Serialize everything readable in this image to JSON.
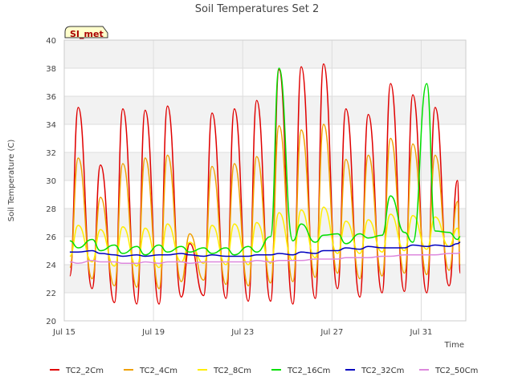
{
  "chart_data": {
    "type": "line",
    "title": "Soil Temperatures Set 2",
    "xlabel": "Time",
    "ylabel": "Soil Temperature (C)",
    "ylim": [
      20,
      40
    ],
    "yticks": [
      20,
      22,
      24,
      26,
      28,
      30,
      32,
      34,
      36,
      38,
      40
    ],
    "xlim": [
      "2023-07-15",
      "2023-08-02"
    ],
    "xticks": [
      {
        "date": "2023-07-15",
        "label": "Jul 15"
      },
      {
        "date": "2023-07-19",
        "label": "Jul 19"
      },
      {
        "date": "2023-07-23",
        "label": "Jul 23"
      },
      {
        "date": "2023-07-27",
        "label": "Jul 27"
      },
      {
        "date": "2023-07-31",
        "label": "Jul 31"
      }
    ],
    "grid": true,
    "legend_position": "bottom",
    "site_label": "SI_met",
    "x": [
      "2023-07-15 06:00",
      "2023-07-15 15:00",
      "2023-07-16 06:00",
      "2023-07-16 15:00",
      "2023-07-17 06:00",
      "2023-07-17 15:00",
      "2023-07-18 06:00",
      "2023-07-18 15:00",
      "2023-07-19 06:00",
      "2023-07-19 15:00",
      "2023-07-20 06:00",
      "2023-07-20 15:00",
      "2023-07-21 06:00",
      "2023-07-21 15:00",
      "2023-07-22 06:00",
      "2023-07-22 15:00",
      "2023-07-23 06:00",
      "2023-07-23 15:00",
      "2023-07-24 06:00",
      "2023-07-24 15:00",
      "2023-07-25 06:00",
      "2023-07-25 15:00",
      "2023-07-26 06:00",
      "2023-07-26 15:00",
      "2023-07-27 06:00",
      "2023-07-27 15:00",
      "2023-07-28 06:00",
      "2023-07-28 15:00",
      "2023-07-29 06:00",
      "2023-07-29 15:00",
      "2023-07-30 06:00",
      "2023-07-30 15:00",
      "2023-07-31 06:00",
      "2023-07-31 15:00",
      "2023-08-01 06:00",
      "2023-08-01 15:00",
      "2023-08-01 18:00"
    ],
    "series": [
      {
        "name": "TC2_2Cm",
        "color": "#e00000",
        "values": [
          23.2,
          35.2,
          22.3,
          31.1,
          21.3,
          35.1,
          21.2,
          35.0,
          21.2,
          35.3,
          21.7,
          25.5,
          21.8,
          34.8,
          21.6,
          35.1,
          21.4,
          35.7,
          21.4,
          37.9,
          21.2,
          38.1,
          21.6,
          38.3,
          22.3,
          35.1,
          21.7,
          34.7,
          22.0,
          36.9,
          22.1,
          36.1,
          22.0,
          35.2,
          22.5,
          30.0,
          23.4
        ]
      },
      {
        "name": "TC2_4Cm",
        "color": "#f0a000",
        "values": [
          23.8,
          31.6,
          23.0,
          28.8,
          22.5,
          31.2,
          22.4,
          31.6,
          22.3,
          31.8,
          22.8,
          26.2,
          22.9,
          31.0,
          22.6,
          31.2,
          22.5,
          31.7,
          22.7,
          33.9,
          22.8,
          33.6,
          23.1,
          34.0,
          23.4,
          31.5,
          23.0,
          31.8,
          23.2,
          33.0,
          23.4,
          32.6,
          23.3,
          31.8,
          23.6,
          28.5,
          24.0
        ]
      },
      {
        "name": "TC2_8Cm",
        "color": "#ffee00",
        "values": [
          24.6,
          26.8,
          24.2,
          26.5,
          23.9,
          26.7,
          23.9,
          26.6,
          23.8,
          26.9,
          24.2,
          25.6,
          24.1,
          26.8,
          24.0,
          26.9,
          24.0,
          27.0,
          24.1,
          27.7,
          24.3,
          27.9,
          24.5,
          28.1,
          24.8,
          27.1,
          24.8,
          27.2,
          24.9,
          27.6,
          25.0,
          27.5,
          25.1,
          27.4,
          25.3,
          26.6,
          25.6
        ]
      },
      {
        "name": "TC2_16Cm",
        "color": "#00e000",
        "values": [
          25.7,
          25.2,
          25.8,
          25.0,
          25.4,
          24.8,
          25.3,
          24.7,
          25.4,
          24.9,
          25.3,
          24.9,
          25.2,
          24.8,
          25.2,
          24.7,
          25.3,
          24.9,
          26.0,
          38.0,
          25.7,
          26.9,
          25.6,
          26.1,
          26.2,
          25.5,
          26.2,
          25.9,
          26.1,
          28.9,
          26.3,
          25.6,
          36.9,
          26.4,
          26.3,
          25.8,
          26.0
        ]
      },
      {
        "name": "TC2_32Cm",
        "color": "#0000c0",
        "values": [
          24.9,
          24.9,
          25.0,
          24.8,
          24.7,
          24.6,
          24.7,
          24.6,
          24.7,
          24.7,
          24.8,
          24.7,
          24.6,
          24.7,
          24.6,
          24.6,
          24.6,
          24.7,
          24.7,
          24.8,
          24.7,
          24.9,
          24.8,
          25.0,
          25.0,
          25.2,
          25.1,
          25.3,
          25.2,
          25.2,
          25.2,
          25.4,
          25.3,
          25.4,
          25.3,
          25.5,
          25.6
        ]
      },
      {
        "name": "TC2_50Cm",
        "color": "#dd88dd",
        "values": [
          24.2,
          24.1,
          24.3,
          24.2,
          24.2,
          24.1,
          24.1,
          24.2,
          24.1,
          24.2,
          24.2,
          24.1,
          24.2,
          24.2,
          24.2,
          24.2,
          24.2,
          24.3,
          24.2,
          24.3,
          24.3,
          24.3,
          24.4,
          24.4,
          24.4,
          24.5,
          24.5,
          24.5,
          24.6,
          24.6,
          24.7,
          24.7,
          24.7,
          24.7,
          24.8,
          24.8,
          24.9
        ]
      }
    ]
  }
}
